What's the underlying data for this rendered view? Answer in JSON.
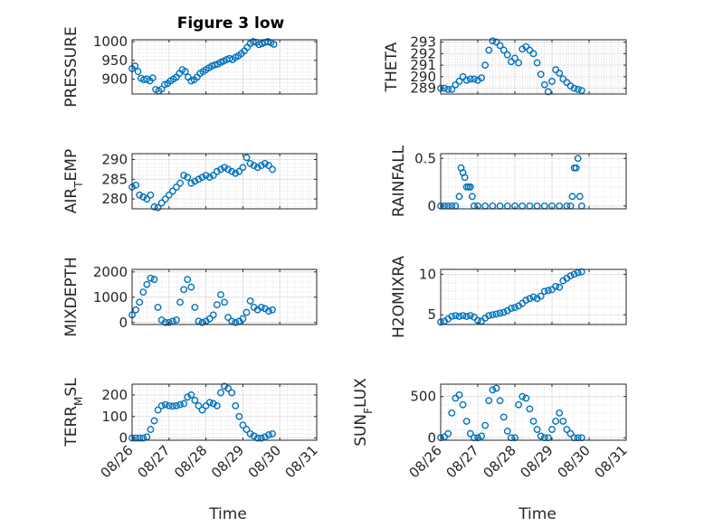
{
  "figure": {
    "title": "Figure 3 low",
    "xlabel": "Time"
  },
  "chart_data": [
    {
      "type": "scatter",
      "ylabel": "PRESSURE",
      "ylim": [
        860,
        1005
      ],
      "yticks": [
        900,
        950,
        1000
      ],
      "xticks": [
        "08/26",
        "08/27",
        "08/28",
        "08/29",
        "08/30",
        "08/31"
      ],
      "xlim": [
        0,
        5
      ],
      "grid": true,
      "marker_color": "#0072BD",
      "x": [
        0,
        0.08,
        0.16,
        0.24,
        0.32,
        0.4,
        0.48,
        0.56,
        0.64,
        0.72,
        0.8,
        0.88,
        0.96,
        1.04,
        1.12,
        1.2,
        1.28,
        1.36,
        1.44,
        1.52,
        1.6,
        1.68,
        1.76,
        1.84,
        1.92,
        2.0,
        2.08,
        2.16,
        2.24,
        2.32,
        2.4,
        2.48,
        2.56,
        2.64,
        2.72,
        2.8,
        2.88,
        2.96,
        3.04,
        3.12,
        3.2,
        3.28,
        3.36,
        3.44,
        3.52,
        3.6,
        3.68,
        3.76,
        3.84
      ],
      "y": [
        928,
        935,
        920,
        902,
        898,
        900,
        895,
        903,
        872,
        868,
        873,
        885,
        888,
        895,
        900,
        905,
        915,
        925,
        920,
        905,
        895,
        898,
        905,
        915,
        920,
        925,
        930,
        935,
        938,
        940,
        945,
        948,
        952,
        955,
        952,
        958,
        962,
        968,
        975,
        985,
        995,
        1000,
        998,
        992,
        995,
        998,
        1000,
        997,
        993
      ]
    },
    {
      "type": "scatter",
      "ylabel": "THETA",
      "ylim": [
        288.5,
        293.2
      ],
      "yticks": [
        289,
        290,
        291,
        292,
        293
      ],
      "xticks": [
        "08/26",
        "08/27",
        "08/28",
        "08/29",
        "08/30",
        "08/31"
      ],
      "xlim": [
        0,
        5
      ],
      "grid": true,
      "marker_color": "#0072BD",
      "x": [
        0,
        0.1,
        0.2,
        0.3,
        0.4,
        0.5,
        0.6,
        0.7,
        0.8,
        0.9,
        1.0,
        1.1,
        1.2,
        1.3,
        1.4,
        1.5,
        1.6,
        1.7,
        1.8,
        1.9,
        2.0,
        2.1,
        2.2,
        2.3,
        2.4,
        2.5,
        2.6,
        2.7,
        2.8,
        2.9,
        3.0,
        3.1,
        3.2,
        3.3,
        3.4,
        3.5,
        3.6,
        3.7,
        3.8
      ],
      "y": [
        289.0,
        289.0,
        288.9,
        288.9,
        289.3,
        289.6,
        290.0,
        289.7,
        289.8,
        289.8,
        289.7,
        289.9,
        291.0,
        292.3,
        293.1,
        293.0,
        292.7,
        292.3,
        291.9,
        291.3,
        291.6,
        291.2,
        292.4,
        292.6,
        292.3,
        292.0,
        291.2,
        290.2,
        289.3,
        288.7,
        289.6,
        290.6,
        290.3,
        289.8,
        289.5,
        289.2,
        289.0,
        288.9,
        288.8
      ]
    },
    {
      "type": "scatter",
      "ylabel": "AIR_TEMP",
      "ylim": [
        277.5,
        291.5
      ],
      "yticks": [
        280,
        285,
        290
      ],
      "xticks": [
        "08/26",
        "08/27",
        "08/28",
        "08/29",
        "08/30",
        "08/31"
      ],
      "xlim": [
        0,
        5
      ],
      "grid": true,
      "marker_color": "#0072BD",
      "x": [
        0,
        0.1,
        0.2,
        0.3,
        0.4,
        0.5,
        0.6,
        0.7,
        0.8,
        0.9,
        1.0,
        1.1,
        1.2,
        1.3,
        1.4,
        1.5,
        1.6,
        1.7,
        1.8,
        1.9,
        2.0,
        2.1,
        2.2,
        2.3,
        2.4,
        2.5,
        2.6,
        2.7,
        2.8,
        2.9,
        3.0,
        3.1,
        3.2,
        3.3,
        3.4,
        3.5,
        3.6,
        3.7,
        3.8
      ],
      "y": [
        283,
        283.5,
        281,
        280.5,
        280,
        281,
        278,
        277.8,
        279,
        280,
        281,
        282,
        283,
        284,
        286,
        285.5,
        284,
        284.5,
        285,
        285.5,
        286,
        285.5,
        286,
        287,
        287.5,
        288,
        287.5,
        287,
        286.5,
        287,
        288,
        290.5,
        289,
        288.5,
        288,
        288.5,
        289,
        288.5,
        287.5
      ]
    },
    {
      "type": "scatter",
      "ylabel": "RAINFALL",
      "ylim": [
        -0.03,
        0.55
      ],
      "yticks": [
        0,
        0.5
      ],
      "xticks": [
        "08/26",
        "08/27",
        "08/28",
        "08/29",
        "08/30",
        "08/31"
      ],
      "xlim": [
        0,
        5
      ],
      "grid": true,
      "marker_color": "#0072BD",
      "x": [
        0,
        0.1,
        0.2,
        0.3,
        0.4,
        0.5,
        0.55,
        0.6,
        0.65,
        0.7,
        0.75,
        0.8,
        0.85,
        0.9,
        1.0,
        1.2,
        1.4,
        1.6,
        1.8,
        2.0,
        2.2,
        2.4,
        2.6,
        2.8,
        3.0,
        3.2,
        3.4,
        3.5,
        3.55,
        3.6,
        3.65,
        3.7,
        3.75,
        3.8
      ],
      "y": [
        0,
        0,
        0,
        0,
        0,
        0.1,
        0.4,
        0.35,
        0.3,
        0.2,
        0.2,
        0.2,
        0.1,
        0,
        0,
        0,
        0,
        0,
        0,
        0,
        0,
        0,
        0,
        0,
        0,
        0,
        0,
        0,
        0.1,
        0.4,
        0.4,
        0.5,
        0.1,
        0
      ]
    },
    {
      "type": "scatter",
      "ylabel": "MIXDEPTH",
      "ylim": [
        -80,
        2100
      ],
      "yticks": [
        0,
        1000,
        2000
      ],
      "xticks": [
        "08/26",
        "08/27",
        "08/28",
        "08/29",
        "08/30",
        "08/31"
      ],
      "xlim": [
        0,
        5
      ],
      "grid": true,
      "marker_color": "#0072BD",
      "x": [
        0,
        0.1,
        0.2,
        0.3,
        0.4,
        0.5,
        0.6,
        0.7,
        0.8,
        0.9,
        1.0,
        1.1,
        1.2,
        1.3,
        1.4,
        1.5,
        1.6,
        1.7,
        1.8,
        1.9,
        2.0,
        2.1,
        2.2,
        2.3,
        2.4,
        2.5,
        2.6,
        2.7,
        2.8,
        2.9,
        3.0,
        3.1,
        3.2,
        3.3,
        3.4,
        3.5,
        3.6,
        3.7,
        3.8
      ],
      "y": [
        300,
        500,
        800,
        1200,
        1500,
        1750,
        1700,
        600,
        100,
        0,
        0,
        50,
        100,
        800,
        1300,
        1700,
        1400,
        600,
        50,
        0,
        50,
        150,
        300,
        700,
        1100,
        800,
        200,
        50,
        0,
        50,
        150,
        400,
        850,
        600,
        500,
        600,
        550,
        450,
        500
      ]
    },
    {
      "type": "scatter",
      "ylabel": "H2OMIXRA",
      "ylim": [
        3.8,
        10.6
      ],
      "yticks": [
        5,
        10
      ],
      "xticks": [
        "08/26",
        "08/27",
        "08/28",
        "08/29",
        "08/30",
        "08/31"
      ],
      "xlim": [
        0,
        5
      ],
      "grid": true,
      "marker_color": "#0072BD",
      "x": [
        0,
        0.1,
        0.2,
        0.3,
        0.4,
        0.5,
        0.6,
        0.7,
        0.8,
        0.9,
        1.0,
        1.1,
        1.2,
        1.3,
        1.4,
        1.5,
        1.6,
        1.7,
        1.8,
        1.9,
        2.0,
        2.1,
        2.2,
        2.3,
        2.4,
        2.5,
        2.6,
        2.7,
        2.8,
        2.9,
        3.0,
        3.1,
        3.2,
        3.3,
        3.4,
        3.5,
        3.6,
        3.7,
        3.8
      ],
      "y": [
        4.1,
        4.2,
        4.5,
        4.8,
        4.9,
        4.8,
        4.9,
        4.8,
        4.9,
        4.7,
        4.3,
        4.2,
        4.6,
        4.9,
        5.0,
        5.1,
        5.2,
        5.3,
        5.5,
        5.8,
        5.9,
        6.1,
        6.4,
        6.8,
        7.0,
        7.2,
        7.0,
        7.3,
        7.9,
        8.0,
        8.1,
        8.5,
        8.4,
        9.2,
        9.5,
        9.8,
        10.0,
        10.2,
        10.3
      ]
    },
    {
      "type": "scatter",
      "ylabel": "TERR_MSL",
      "ylim": [
        -10,
        250
      ],
      "yticks": [
        0,
        100,
        200
      ],
      "xticks": [
        "08/26",
        "08/27",
        "08/28",
        "08/29",
        "08/30",
        "08/31"
      ],
      "xlim": [
        0,
        5
      ],
      "grid": true,
      "marker_color": "#0072BD",
      "x": [
        0,
        0.1,
        0.2,
        0.3,
        0.4,
        0.5,
        0.6,
        0.7,
        0.8,
        0.9,
        1.0,
        1.1,
        1.2,
        1.3,
        1.4,
        1.5,
        1.6,
        1.7,
        1.8,
        1.9,
        2.0,
        2.1,
        2.2,
        2.3,
        2.4,
        2.5,
        2.6,
        2.7,
        2.8,
        2.9,
        3.0,
        3.1,
        3.2,
        3.3,
        3.4,
        3.5,
        3.6,
        3.7,
        3.8
      ],
      "y": [
        0,
        0,
        0,
        0,
        5,
        40,
        80,
        130,
        150,
        155,
        150,
        148,
        150,
        155,
        160,
        190,
        200,
        175,
        150,
        130,
        150,
        165,
        160,
        150,
        210,
        240,
        230,
        210,
        150,
        100,
        60,
        40,
        20,
        10,
        0,
        0,
        5,
        15,
        20
      ]
    },
    {
      "type": "scatter",
      "ylabel": "SUN_FLUX",
      "ylim": [
        -30,
        650
      ],
      "yticks": [
        0,
        500
      ],
      "xticks": [
        "08/26",
        "08/27",
        "08/28",
        "08/29",
        "08/30",
        "08/31"
      ],
      "xlim": [
        0,
        5
      ],
      "grid": true,
      "marker_color": "#0072BD",
      "x": [
        0,
        0.1,
        0.2,
        0.3,
        0.4,
        0.5,
        0.6,
        0.7,
        0.8,
        0.9,
        1.0,
        1.1,
        1.2,
        1.3,
        1.4,
        1.5,
        1.6,
        1.7,
        1.8,
        1.9,
        2.0,
        2.1,
        2.2,
        2.3,
        2.4,
        2.5,
        2.6,
        2.7,
        2.8,
        2.9,
        3.0,
        3.1,
        3.2,
        3.3,
        3.4,
        3.5,
        3.6,
        3.7,
        3.8
      ],
      "y": [
        0,
        10,
        50,
        300,
        480,
        520,
        400,
        200,
        50,
        0,
        0,
        20,
        150,
        450,
        580,
        600,
        450,
        250,
        80,
        0,
        0,
        400,
        500,
        480,
        350,
        200,
        100,
        20,
        0,
        0,
        100,
        200,
        300,
        200,
        100,
        50,
        0,
        0,
        0
      ]
    }
  ]
}
